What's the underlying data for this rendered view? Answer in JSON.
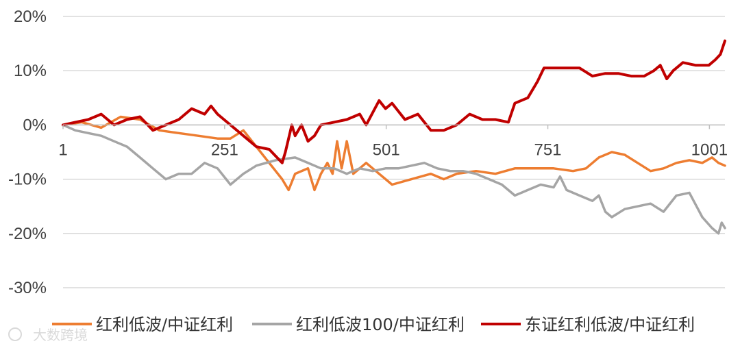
{
  "chart_data": {
    "type": "line",
    "title": "",
    "xlabel": "",
    "ylabel": "",
    "xlim": [
      1,
      1025
    ],
    "ylim": [
      -30,
      20
    ],
    "yticks": [
      20,
      10,
      0,
      -10,
      -20,
      -30
    ],
    "ytick_labels": [
      "20%",
      "10%",
      "0%",
      "-10%",
      "-20%",
      "-30%"
    ],
    "xticks": [
      1,
      251,
      501,
      751,
      1001
    ],
    "xtick_labels": [
      "1",
      "251",
      "501",
      "751",
      "1001"
    ],
    "grid": "horizontal",
    "legend": "bottom",
    "series": [
      {
        "name": "红利低波/中证红利",
        "color": "#ED7D31",
        "points": [
          [
            1,
            0
          ],
          [
            30,
            0.5
          ],
          [
            60,
            -0.5
          ],
          [
            90,
            1.5
          ],
          [
            120,
            1
          ],
          [
            150,
            -1
          ],
          [
            180,
            -1.5
          ],
          [
            210,
            -2
          ],
          [
            240,
            -2.5
          ],
          [
            260,
            -2.5
          ],
          [
            280,
            -1
          ],
          [
            300,
            -4
          ],
          [
            320,
            -7
          ],
          [
            340,
            -10
          ],
          [
            350,
            -12
          ],
          [
            360,
            -9
          ],
          [
            380,
            -8
          ],
          [
            390,
            -12
          ],
          [
            400,
            -9
          ],
          [
            410,
            -7
          ],
          [
            418,
            -9
          ],
          [
            425,
            -3
          ],
          [
            432,
            -8
          ],
          [
            440,
            -3
          ],
          [
            450,
            -9
          ],
          [
            470,
            -7
          ],
          [
            490,
            -9
          ],
          [
            510,
            -11
          ],
          [
            540,
            -10
          ],
          [
            570,
            -9
          ],
          [
            590,
            -10
          ],
          [
            610,
            -9
          ],
          [
            640,
            -8.5
          ],
          [
            670,
            -9
          ],
          [
            700,
            -8
          ],
          [
            730,
            -8
          ],
          [
            760,
            -8
          ],
          [
            790,
            -8.5
          ],
          [
            810,
            -8
          ],
          [
            830,
            -6
          ],
          [
            850,
            -5
          ],
          [
            870,
            -5.5
          ],
          [
            890,
            -7
          ],
          [
            910,
            -8.5
          ],
          [
            930,
            -8
          ],
          [
            950,
            -7
          ],
          [
            970,
            -6.5
          ],
          [
            990,
            -7
          ],
          [
            1005,
            -6
          ],
          [
            1015,
            -7
          ],
          [
            1025,
            -7.5
          ]
        ]
      },
      {
        "name": "红利低波100/中证红利",
        "color": "#A5A5A5",
        "points": [
          [
            1,
            0
          ],
          [
            20,
            -1
          ],
          [
            40,
            -1.5
          ],
          [
            60,
            -2
          ],
          [
            80,
            -3
          ],
          [
            100,
            -4
          ],
          [
            120,
            -6
          ],
          [
            140,
            -8
          ],
          [
            160,
            -10
          ],
          [
            180,
            -9
          ],
          [
            200,
            -9
          ],
          [
            220,
            -7
          ],
          [
            240,
            -8
          ],
          [
            260,
            -11
          ],
          [
            280,
            -9
          ],
          [
            300,
            -7.5
          ],
          [
            330,
            -6.5
          ],
          [
            360,
            -6
          ],
          [
            380,
            -7
          ],
          [
            400,
            -8
          ],
          [
            420,
            -8
          ],
          [
            440,
            -9
          ],
          [
            460,
            -8
          ],
          [
            480,
            -8.5
          ],
          [
            500,
            -8
          ],
          [
            520,
            -8
          ],
          [
            540,
            -7.5
          ],
          [
            560,
            -7
          ],
          [
            580,
            -8
          ],
          [
            600,
            -8.5
          ],
          [
            620,
            -8.5
          ],
          [
            640,
            -9
          ],
          [
            660,
            -10
          ],
          [
            680,
            -11
          ],
          [
            700,
            -13
          ],
          [
            720,
            -12
          ],
          [
            740,
            -11
          ],
          [
            760,
            -11.5
          ],
          [
            770,
            -9.5
          ],
          [
            780,
            -12
          ],
          [
            800,
            -13
          ],
          [
            820,
            -14
          ],
          [
            830,
            -13
          ],
          [
            840,
            -16
          ],
          [
            850,
            -17
          ],
          [
            870,
            -15.5
          ],
          [
            890,
            -15
          ],
          [
            910,
            -14.5
          ],
          [
            930,
            -16
          ],
          [
            950,
            -13
          ],
          [
            970,
            -12.5
          ],
          [
            990,
            -17
          ],
          [
            1005,
            -19
          ],
          [
            1015,
            -20
          ],
          [
            1020,
            -18
          ],
          [
            1025,
            -19
          ]
        ]
      },
      {
        "name": "东证红利低波/中证红利",
        "color": "#C00000",
        "points": [
          [
            1,
            0
          ],
          [
            20,
            0.5
          ],
          [
            40,
            1
          ],
          [
            60,
            2
          ],
          [
            80,
            0
          ],
          [
            100,
            1
          ],
          [
            120,
            1.5
          ],
          [
            140,
            -1
          ],
          [
            160,
            0
          ],
          [
            180,
            1
          ],
          [
            200,
            3
          ],
          [
            220,
            2
          ],
          [
            230,
            3.5
          ],
          [
            240,
            2
          ],
          [
            260,
            0
          ],
          [
            280,
            -2
          ],
          [
            300,
            -4
          ],
          [
            320,
            -4.5
          ],
          [
            340,
            -7
          ],
          [
            345,
            -5
          ],
          [
            355,
            0
          ],
          [
            360,
            -2
          ],
          [
            370,
            0
          ],
          [
            380,
            -3
          ],
          [
            390,
            -2
          ],
          [
            400,
            0
          ],
          [
            420,
            0.5
          ],
          [
            440,
            1
          ],
          [
            460,
            2
          ],
          [
            470,
            0
          ],
          [
            490,
            4.5
          ],
          [
            500,
            3
          ],
          [
            510,
            4
          ],
          [
            530,
            1
          ],
          [
            550,
            2
          ],
          [
            570,
            -1
          ],
          [
            590,
            -1
          ],
          [
            610,
            0
          ],
          [
            630,
            2
          ],
          [
            650,
            1
          ],
          [
            670,
            1
          ],
          [
            690,
            0.5
          ],
          [
            700,
            4
          ],
          [
            720,
            5
          ],
          [
            735,
            8
          ],
          [
            745,
            10.5
          ],
          [
            760,
            10.5
          ],
          [
            780,
            10.5
          ],
          [
            800,
            10.5
          ],
          [
            820,
            9
          ],
          [
            840,
            9.5
          ],
          [
            860,
            9.5
          ],
          [
            880,
            9
          ],
          [
            900,
            9
          ],
          [
            915,
            10
          ],
          [
            925,
            11
          ],
          [
            935,
            8.5
          ],
          [
            945,
            10
          ],
          [
            960,
            11.5
          ],
          [
            980,
            11
          ],
          [
            1000,
            11
          ],
          [
            1010,
            12
          ],
          [
            1018,
            13
          ],
          [
            1025,
            15.5
          ]
        ]
      }
    ]
  },
  "watermark": "大数跨境"
}
